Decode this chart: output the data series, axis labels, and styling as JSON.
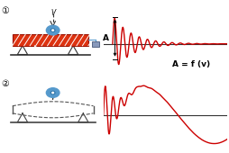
{
  "bg_color": "#ffffff",
  "signal1_color": "#cc0000",
  "signal2_color": "#cc0000",
  "baseline_color": "#333333",
  "red_plate_color": "#dd3311",
  "blue_color": "#5599cc",
  "dark_color": "#333333",
  "label_A": "A",
  "label_formula": "A = f (v)",
  "font_size_small": 5.5,
  "font_size_formula": 6.0,
  "font_size_number": 7
}
